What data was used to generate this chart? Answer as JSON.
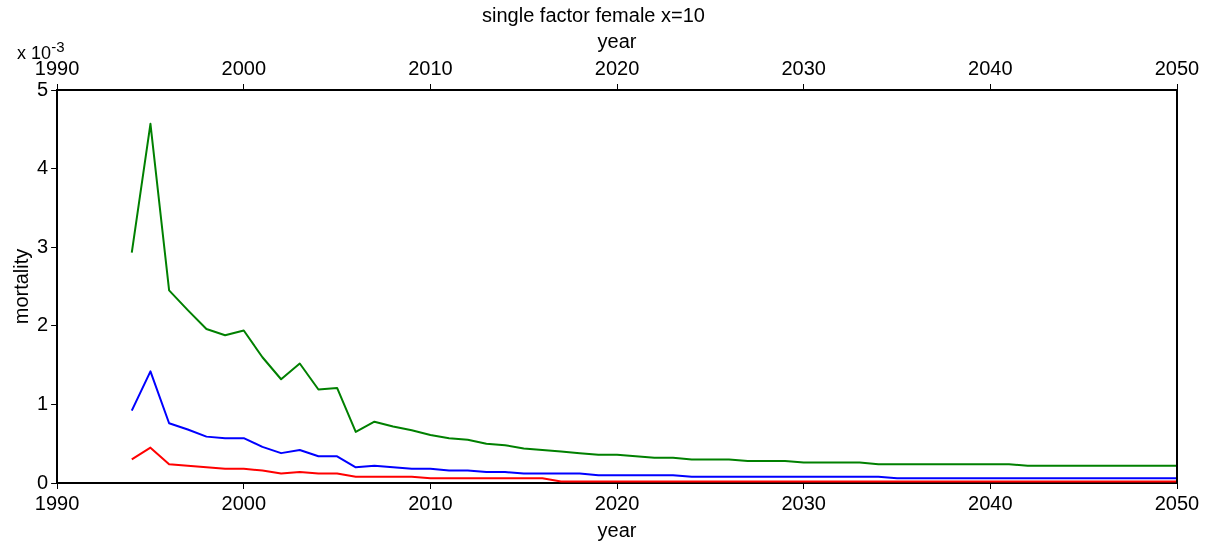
{
  "chart_data": {
    "type": "line",
    "title": "single factor female x=10",
    "xlabel": "year",
    "x2label": "year",
    "ylabel": "mortality",
    "annotations": [
      "x 10$^{-3}$"
    ],
    "x": [
      1994,
      1995,
      1996,
      1997,
      1998,
      1999,
      2000,
      2001,
      2002,
      2003,
      2004,
      2005,
      2006,
      2007,
      2008,
      2009,
      2010,
      2011,
      2012,
      2013,
      2014,
      2015,
      2016,
      2017,
      2018,
      2019,
      2020,
      2021,
      2022,
      2023,
      2024,
      2025,
      2026,
      2027,
      2028,
      2029,
      2030,
      2031,
      2032,
      2033,
      2034,
      2035,
      2036,
      2037,
      2038,
      2039,
      2040,
      2041,
      2042,
      2043,
      2044,
      2045,
      2046,
      2047,
      2048,
      2049,
      2050
    ],
    "series": [
      {
        "color": "#008000",
        "values": [
          2.93,
          4.57,
          2.45,
          2.2,
          1.96,
          1.88,
          1.94,
          1.6,
          1.32,
          1.52,
          1.19,
          1.21,
          0.65,
          0.78,
          0.72,
          0.67,
          0.61,
          0.57,
          0.55,
          0.5,
          0.48,
          0.44,
          0.42,
          0.4,
          0.38,
          0.36,
          0.36,
          0.34,
          0.32,
          0.32,
          0.3,
          0.3,
          0.3,
          0.28,
          0.28,
          0.28,
          0.26,
          0.26,
          0.26,
          0.26,
          0.24,
          0.24,
          0.24,
          0.24,
          0.24,
          0.24,
          0.24,
          0.24,
          0.22,
          0.22,
          0.22,
          0.22,
          0.22,
          0.22,
          0.22,
          0.22,
          0.22
        ]
      },
      {
        "color": "#0000ff",
        "values": [
          0.92,
          1.42,
          0.76,
          0.68,
          0.59,
          0.57,
          0.57,
          0.46,
          0.38,
          0.42,
          0.34,
          0.34,
          0.2,
          0.22,
          0.2,
          0.18,
          0.18,
          0.16,
          0.16,
          0.14,
          0.14,
          0.12,
          0.12,
          0.12,
          0.12,
          0.1,
          0.1,
          0.1,
          0.1,
          0.1,
          0.08,
          0.08,
          0.08,
          0.08,
          0.08,
          0.08,
          0.08,
          0.08,
          0.08,
          0.08,
          0.08,
          0.06,
          0.06,
          0.06,
          0.06,
          0.06,
          0.06,
          0.06,
          0.06,
          0.06,
          0.06,
          0.06,
          0.06,
          0.06,
          0.06,
          0.06,
          0.06
        ]
      },
      {
        "color": "#ff0000",
        "values": [
          0.3,
          0.45,
          0.24,
          0.22,
          0.2,
          0.18,
          0.18,
          0.16,
          0.12,
          0.14,
          0.12,
          0.12,
          0.08,
          0.08,
          0.08,
          0.08,
          0.06,
          0.06,
          0.06,
          0.06,
          0.06,
          0.06,
          0.06,
          0.02,
          0.02,
          0.02,
          0.02,
          0.02,
          0.02,
          0.02,
          0.02,
          0.02,
          0.02,
          0.02,
          0.02,
          0.02,
          0.02,
          0.02,
          0.02,
          0.02,
          0.02,
          0.02,
          0.02,
          0.02,
          0.02,
          0.02,
          0.02,
          0.02,
          0.02,
          0.02,
          0.02,
          0.02,
          0.02,
          0.02,
          0.02,
          0.02,
          0.02
        ]
      }
    ],
    "xlim": [
      1990,
      2050
    ],
    "xticks": [
      1990,
      2000,
      2010,
      2020,
      2030,
      2040,
      2050
    ],
    "x2lim": [
      1990,
      2050
    ],
    "x2ticks": [
      1990,
      2000,
      2010,
      2020,
      2030,
      2040,
      2050
    ],
    "ylim": [
      0,
      5
    ],
    "yticks": [
      0,
      1,
      2,
      3,
      4,
      5
    ],
    "grid": false,
    "legend": false,
    "marker": "none",
    "line_style": "solid"
  }
}
